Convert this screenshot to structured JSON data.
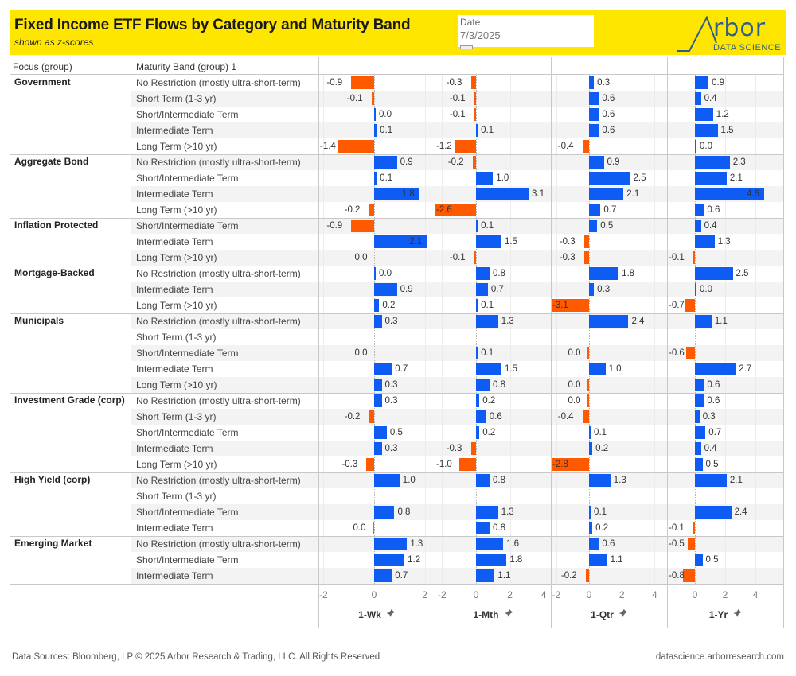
{
  "header": {
    "title": "Fixed Income ETF Flows by Category and Maturity Band",
    "subtitle": "shown as z-scores",
    "date_label": "Date",
    "date_value": "7/3/2025",
    "logo_text": "rbor",
    "logo_sub": "DATA SCIENCE"
  },
  "columns": {
    "focus": "Focus (group)",
    "band": "Maturity Band (group) 1"
  },
  "colors": {
    "positive": "#0f5cf5",
    "negative": "#ff5a00",
    "band_alt": "#f3f3f3"
  },
  "footer": {
    "sources": "Data Sources: Bloomberg, LP © 2025 Arbor Research & Trading, LLC. All Rights Reserved",
    "url": "datascience.arborresearch.com"
  },
  "chart_data": {
    "type": "bar",
    "orientation": "horizontal",
    "title": "Fixed Income ETF Flows by Category and Maturity Band",
    "subtitle": "shown as z-scores",
    "panels": [
      {
        "name": "1-Wk",
        "ticks": [
          "-2",
          "0",
          "2"
        ],
        "xlim": [
          -2.1,
          2.1
        ]
      },
      {
        "name": "1-Mth",
        "ticks": [
          "-2",
          "0",
          "2",
          "4"
        ],
        "xlim": [
          -2.1,
          4.1
        ]
      },
      {
        "name": "1-Qtr",
        "ticks": [
          "-2",
          "0",
          "2",
          "4"
        ],
        "xlim": [
          -3.5,
          4.8
        ]
      },
      {
        "name": "1-Yr",
        "ticks": [
          "0",
          "2",
          "4"
        ],
        "xlim": [
          -1.0,
          5.9
        ]
      }
    ],
    "groups": [
      {
        "focus": "Government",
        "rows": [
          {
            "band": "No Restriction (mostly ultra-short-term)",
            "values": [
              -0.9,
              -0.3,
              0.3,
              0.9
            ]
          },
          {
            "band": "Short Term (1-3 yr)",
            "values": [
              -0.1,
              -0.1,
              0.6,
              0.4
            ]
          },
          {
            "band": "Short/Intermediate Term",
            "values": [
              0.0,
              -0.1,
              0.6,
              1.2
            ]
          },
          {
            "band": "Intermediate Term",
            "values": [
              0.1,
              0.1,
              0.6,
              1.5
            ]
          },
          {
            "band": "Long Term (>10 yr)",
            "values": [
              -1.4,
              -1.2,
              -0.4,
              0.0
            ]
          }
        ]
      },
      {
        "focus": "Aggregate Bond",
        "rows": [
          {
            "band": "No Restriction (mostly ultra-short-term)",
            "values": [
              0.9,
              -0.2,
              0.9,
              2.3
            ]
          },
          {
            "band": "Short/Intermediate Term",
            "values": [
              0.1,
              1.0,
              2.5,
              2.1
            ]
          },
          {
            "band": "Intermediate Term",
            "values": [
              1.8,
              3.1,
              2.1,
              4.6
            ]
          },
          {
            "band": "Long Term (>10 yr)",
            "values": [
              -0.2,
              -2.6,
              0.7,
              0.6
            ]
          }
        ]
      },
      {
        "focus": "Inflation Protected",
        "rows": [
          {
            "band": "Short/Intermediate Term",
            "values": [
              -0.9,
              0.1,
              0.5,
              0.4
            ]
          },
          {
            "band": "Intermediate Term",
            "values": [
              2.1,
              1.5,
              -0.3,
              1.3
            ]
          },
          {
            "band": "Long Term (>10 yr)",
            "values": [
              0.0,
              -0.1,
              -0.3,
              -0.1
            ]
          }
        ]
      },
      {
        "focus": "Mortgage-Backed",
        "rows": [
          {
            "band": "No Restriction (mostly ultra-short-term)",
            "values": [
              0.0,
              0.8,
              1.8,
              2.5
            ]
          },
          {
            "band": "Intermediate Term",
            "values": [
              0.9,
              0.7,
              0.3,
              0.0
            ]
          },
          {
            "band": "Long Term (>10 yr)",
            "values": [
              0.2,
              0.1,
              -3.1,
              -0.7
            ]
          }
        ]
      },
      {
        "focus": "Municipals",
        "rows": [
          {
            "band": "No Restriction (mostly ultra-short-term)",
            "values": [
              0.3,
              1.3,
              2.4,
              1.1
            ]
          },
          {
            "band": "Short Term (1-3 yr)",
            "values": [
              null,
              null,
              null,
              null
            ]
          },
          {
            "band": "Short/Intermediate Term",
            "values": [
              0.0,
              0.1,
              0.0,
              -0.6
            ]
          },
          {
            "band": "Intermediate Term",
            "values": [
              0.7,
              1.5,
              1.0,
              2.7
            ]
          },
          {
            "band": "Long Term (>10 yr)",
            "values": [
              0.3,
              0.8,
              0.0,
              0.6
            ]
          }
        ]
      },
      {
        "focus": "Investment Grade (corp)",
        "rows": [
          {
            "band": "No Restriction (mostly ultra-short-term)",
            "values": [
              0.3,
              0.2,
              0.0,
              0.6
            ]
          },
          {
            "band": "Short Term (1-3 yr)",
            "values": [
              -0.2,
              0.6,
              -0.4,
              0.3
            ]
          },
          {
            "band": "Short/Intermediate Term",
            "values": [
              0.5,
              0.2,
              0.1,
              0.7
            ]
          },
          {
            "band": "Intermediate Term",
            "values": [
              0.3,
              -0.3,
              0.2,
              0.4
            ]
          },
          {
            "band": "Long Term (>10 yr)",
            "values": [
              -0.3,
              -1.0,
              -2.8,
              0.5
            ]
          }
        ]
      },
      {
        "focus": "High Yield (corp)",
        "rows": [
          {
            "band": "No Restriction (mostly ultra-short-term)",
            "values": [
              1.0,
              0.8,
              1.3,
              2.1
            ]
          },
          {
            "band": "Short Term (1-3 yr)",
            "values": [
              null,
              null,
              null,
              null
            ]
          },
          {
            "band": "Short/Intermediate Term",
            "values": [
              0.8,
              1.3,
              0.1,
              2.4
            ]
          },
          {
            "band": "Intermediate Term",
            "values": [
              0.0,
              0.8,
              0.2,
              -0.1
            ]
          }
        ]
      },
      {
        "focus": "Emerging Market",
        "rows": [
          {
            "band": "No Restriction (mostly ultra-short-term)",
            "values": [
              1.3,
              1.6,
              0.6,
              -0.5
            ]
          },
          {
            "band": "Short/Intermediate Term",
            "values": [
              1.2,
              1.8,
              1.1,
              0.5
            ]
          },
          {
            "band": "Intermediate Term",
            "values": [
              0.7,
              1.1,
              -0.2,
              -0.8
            ]
          }
        ]
      }
    ]
  }
}
